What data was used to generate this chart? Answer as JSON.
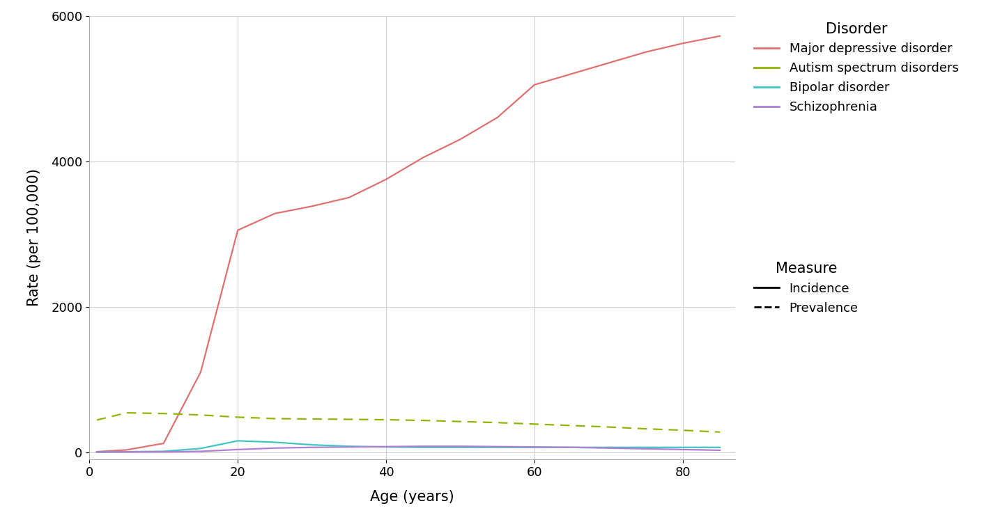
{
  "xlabel": "Age (years)",
  "ylabel": "Rate (per 100,000)",
  "background_color": "#ffffff",
  "plot_bg_color": "#ffffff",
  "grid_color": "#d0d0d0",
  "ages": [
    1,
    5,
    10,
    15,
    20,
    25,
    30,
    35,
    40,
    45,
    50,
    55,
    60,
    65,
    70,
    75,
    80,
    85
  ],
  "mdd_solid": [
    5,
    30,
    120,
    1100,
    3050,
    3280,
    3380,
    3500,
    3750,
    4050,
    4300,
    4600,
    5050,
    5200,
    5350,
    5500,
    5620,
    5720
  ],
  "autism_dashed": [
    440,
    540,
    530,
    510,
    480,
    460,
    455,
    450,
    445,
    435,
    420,
    405,
    385,
    365,
    345,
    320,
    300,
    275
  ],
  "bipolar_solid": [
    2,
    5,
    10,
    50,
    155,
    135,
    100,
    80,
    70,
    65,
    65,
    65,
    65,
    65,
    65,
    65,
    65,
    65
  ],
  "schiz_solid": [
    1,
    2,
    3,
    10,
    35,
    55,
    65,
    70,
    75,
    80,
    80,
    75,
    70,
    65,
    55,
    45,
    35,
    25
  ],
  "color_mdd": "#E07070",
  "color_autism": "#8DB600",
  "color_bipolar": "#40C4C4",
  "color_schiz": "#B07FD0",
  "xlim": [
    0,
    87
  ],
  "ylim": [
    -100,
    6000
  ],
  "yticks": [
    0,
    2000,
    4000,
    6000
  ],
  "xticks": [
    0,
    20,
    40,
    60,
    80
  ],
  "disorder_labels": [
    "Major depressive disorder",
    "Autism spectrum disorders",
    "Bipolar disorder",
    "Schizophrenia"
  ],
  "measure_labels": [
    "Incidence",
    "Prevalence"
  ],
  "legend_disorder_title": "Disorder",
  "legend_measure_title": "Measure",
  "linewidth": 1.6,
  "legend_fontsize": 13,
  "legend_title_fontsize": 15,
  "axis_label_fontsize": 15,
  "tick_fontsize": 13
}
